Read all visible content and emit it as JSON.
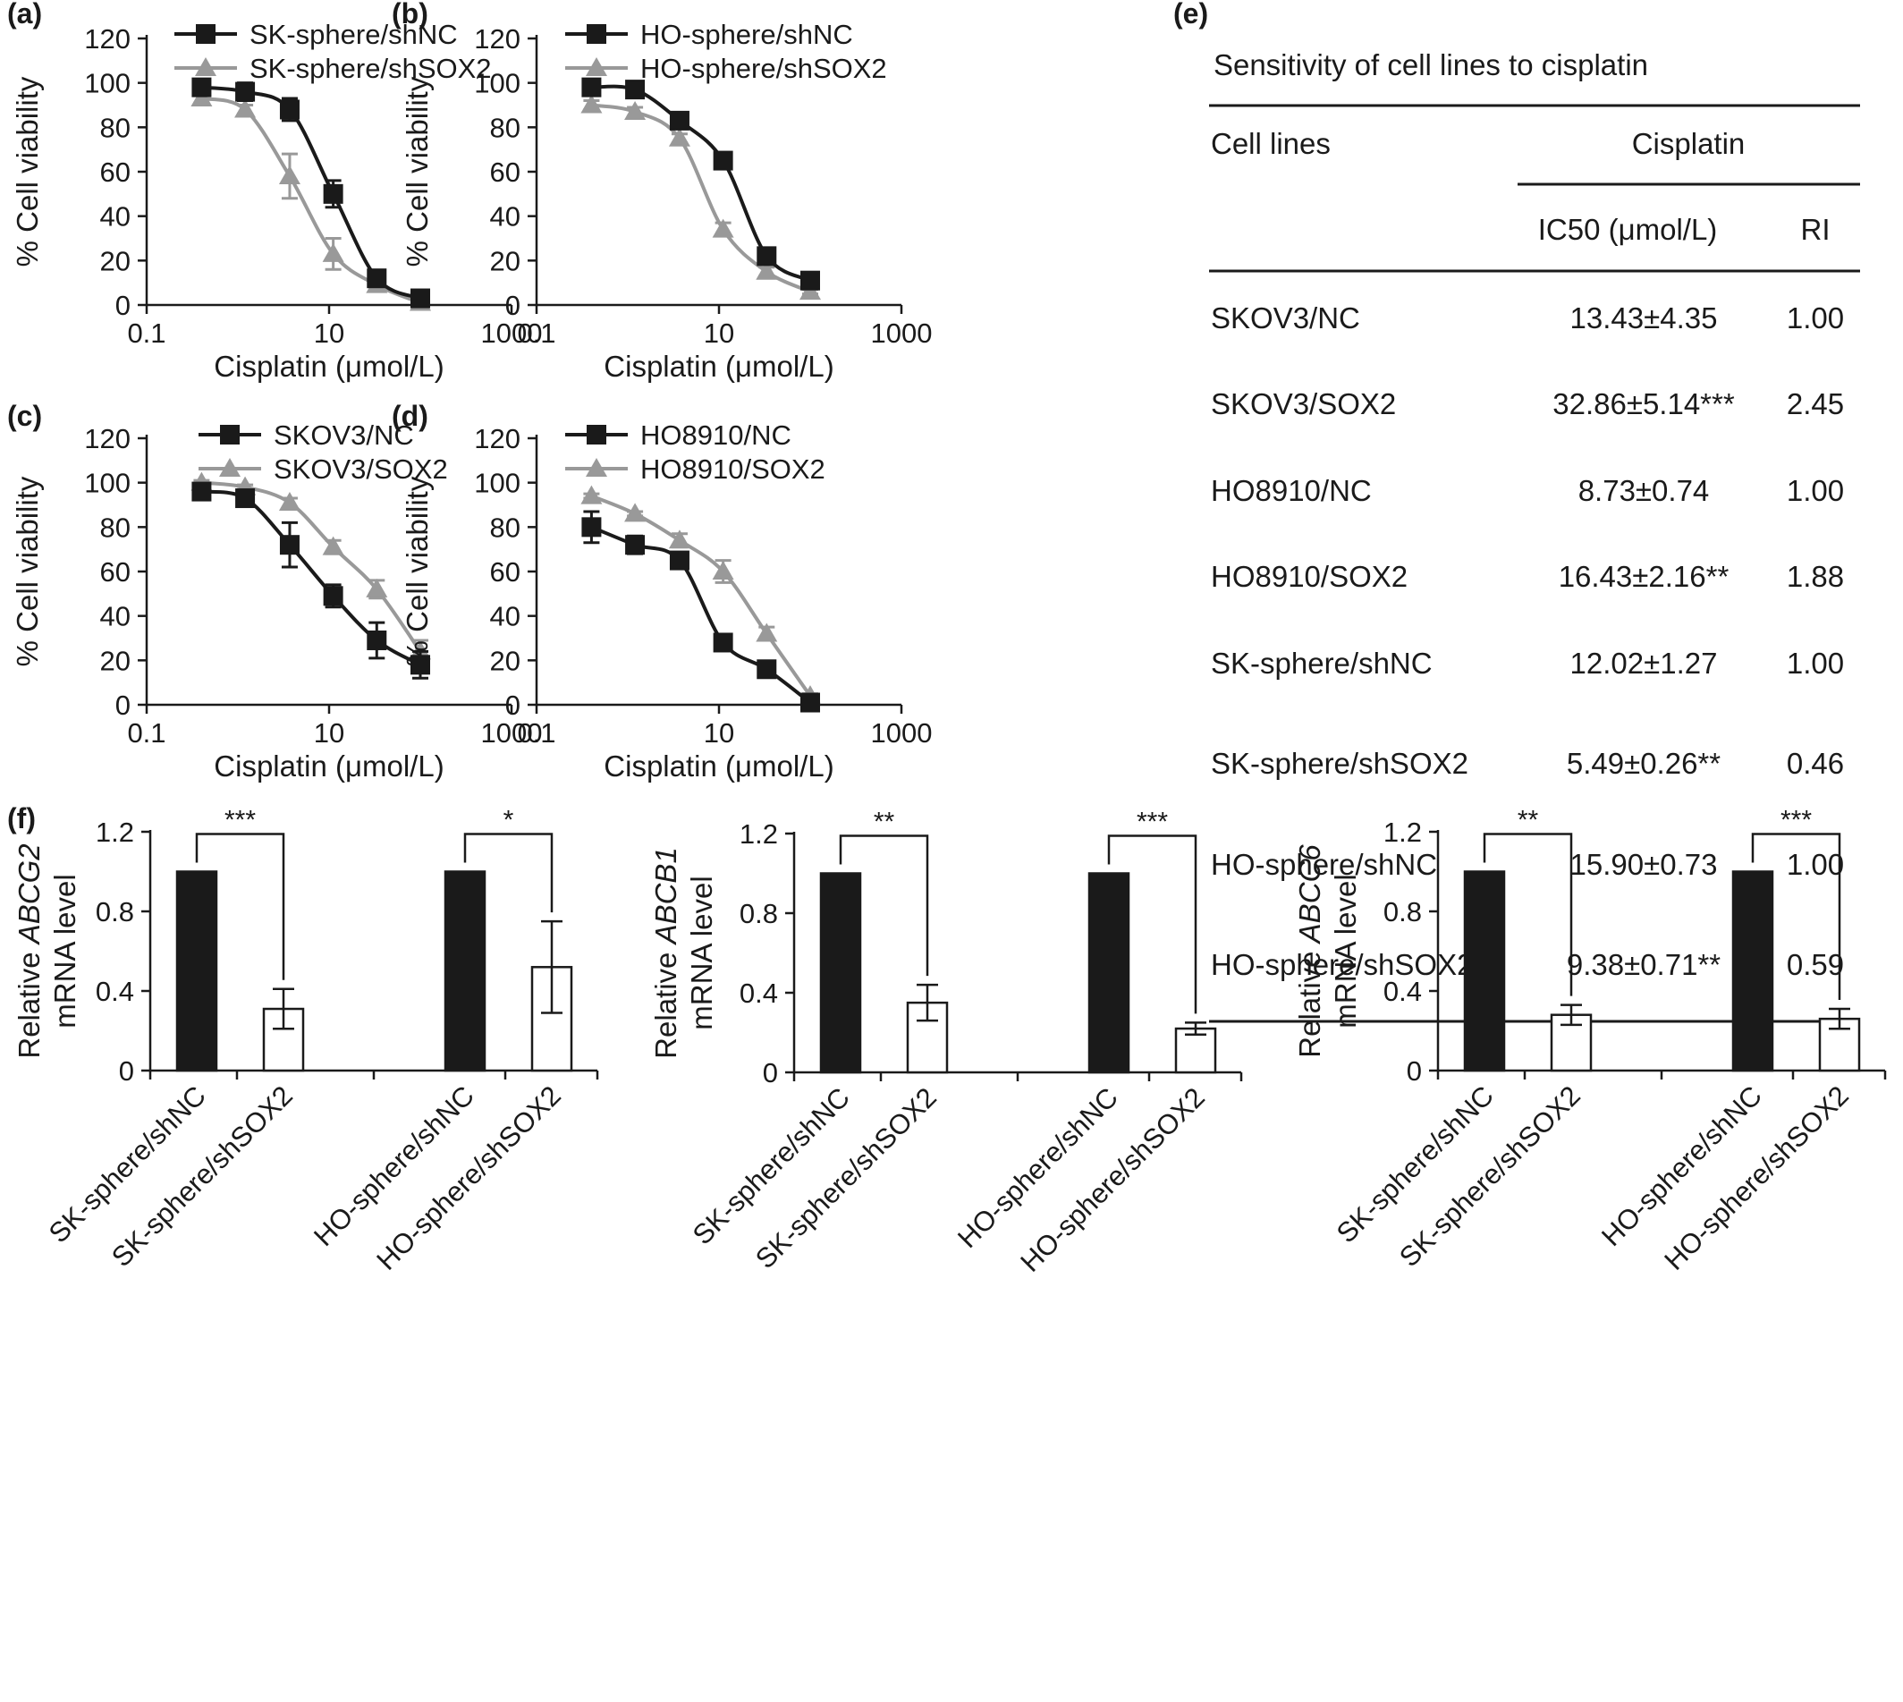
{
  "colors": {
    "dark": "#1a1a1a",
    "gray": "#999999",
    "white": "#ffffff"
  },
  "chart_data": [
    {
      "id": "a",
      "type": "line",
      "panel_label": "(a)",
      "xlabel": "Cisplatin (μmol/L)",
      "ylabel": "% Cell viability",
      "xscale": "log",
      "xlim": [
        0.1,
        1000
      ],
      "ylim": [
        0,
        120
      ],
      "xticks": [
        0.1,
        10,
        1000
      ],
      "xtick_labels": [
        "0.1",
        "10",
        "1000"
      ],
      "yticks": [
        0,
        20,
        40,
        60,
        80,
        100,
        120
      ],
      "ytick_labels": [
        "0",
        "20",
        "40",
        "60",
        "80",
        "100",
        "120"
      ],
      "legend_position": "top-left",
      "x": [
        0.4,
        1.2,
        3.7,
        11.1,
        33.3,
        100
      ],
      "series": [
        {
          "name": "SK-sphere/shNC",
          "color": "#1a1a1a",
          "marker": "square",
          "values": [
            98,
            96,
            88,
            50,
            12,
            3
          ],
          "errors": [
            2,
            4,
            5,
            6,
            2,
            1
          ]
        },
        {
          "name": "SK-sphere/shSOX2",
          "color": "#999999",
          "marker": "triangle",
          "values": [
            93,
            88,
            58,
            23,
            9,
            1
          ],
          "errors": [
            2,
            2,
            10,
            7,
            2,
            1
          ]
        }
      ]
    },
    {
      "id": "b",
      "type": "line",
      "panel_label": "(b)",
      "xlabel": "Cisplatin (μmol/L)",
      "ylabel": "% Cell viability",
      "xscale": "log",
      "xlim": [
        0.1,
        1000
      ],
      "ylim": [
        0,
        120
      ],
      "xticks": [
        0.1,
        10,
        1000
      ],
      "xtick_labels": [
        "0.1",
        "10",
        "1000"
      ],
      "yticks": [
        0,
        20,
        40,
        60,
        80,
        100,
        120
      ],
      "ytick_labels": [
        "0",
        "20",
        "40",
        "60",
        "80",
        "100",
        "120"
      ],
      "legend_position": "top-left",
      "x": [
        0.4,
        1.2,
        3.7,
        11.1,
        33.3,
        100
      ],
      "series": [
        {
          "name": "HO-sphere/shNC",
          "color": "#1a1a1a",
          "marker": "square",
          "values": [
            98,
            97,
            83,
            65,
            22,
            11
          ],
          "errors": [
            1,
            1,
            1,
            2,
            2,
            1
          ]
        },
        {
          "name": "HO-sphere/shSOX2",
          "color": "#999999",
          "marker": "triangle",
          "values": [
            90,
            87,
            75,
            34,
            15,
            6
          ],
          "errors": [
            2,
            2,
            2,
            3,
            2,
            1
          ]
        }
      ]
    },
    {
      "id": "c",
      "type": "line",
      "panel_label": "(c)",
      "xlabel": "Cisplatin (μmol/L)",
      "ylabel": "% Cell viability",
      "xscale": "log",
      "xlim": [
        0.1,
        1000
      ],
      "ylim": [
        0,
        120
      ],
      "xticks": [
        0.1,
        10,
        1000
      ],
      "xtick_labels": [
        "0.1",
        "10",
        "1000"
      ],
      "yticks": [
        0,
        20,
        40,
        60,
        80,
        100,
        120
      ],
      "ytick_labels": [
        "0",
        "20",
        "40",
        "60",
        "80",
        "100",
        "120"
      ],
      "legend_position": "top-center",
      "x": [
        0.4,
        1.2,
        3.7,
        11.1,
        33.3,
        100
      ],
      "series": [
        {
          "name": "SKOV3/NC",
          "color": "#1a1a1a",
          "marker": "square",
          "values": [
            96,
            93,
            72,
            49,
            29,
            18
          ],
          "errors": [
            2,
            2,
            10,
            5,
            8,
            6
          ]
        },
        {
          "name": "SKOV3/SOX2",
          "color": "#999999",
          "marker": "triangle",
          "values": [
            100,
            98,
            91,
            71,
            52,
            24
          ],
          "errors": [
            1,
            1,
            2,
            3,
            4,
            5
          ]
        }
      ]
    },
    {
      "id": "d",
      "type": "line",
      "panel_label": "(d)",
      "xlabel": "Cisplatin (μmol/L)",
      "ylabel": "% Cell viability",
      "xscale": "log",
      "xlim": [
        0.1,
        1000
      ],
      "ylim": [
        0,
        120
      ],
      "xticks": [
        0.1,
        10,
        1000
      ],
      "xtick_labels": [
        "0.1",
        "10",
        "1000"
      ],
      "yticks": [
        0,
        20,
        40,
        60,
        80,
        100,
        120
      ],
      "ytick_labels": [
        "0",
        "20",
        "40",
        "60",
        "80",
        "100",
        "120"
      ],
      "legend_position": "top-center",
      "x": [
        0.4,
        1.2,
        3.7,
        11.1,
        33.3,
        100
      ],
      "series": [
        {
          "name": "HO8910/NC",
          "color": "#1a1a1a",
          "marker": "square",
          "values": [
            80,
            72,
            65,
            28,
            16,
            1
          ],
          "errors": [
            7,
            4,
            1,
            1,
            1,
            1
          ]
        },
        {
          "name": "HO8910/SOX2",
          "color": "#999999",
          "marker": "triangle",
          "values": [
            94,
            86,
            74,
            60,
            32,
            4
          ],
          "errors": [
            1,
            1,
            3,
            5,
            3,
            1
          ]
        }
      ]
    },
    {
      "id": "e",
      "type": "table",
      "panel_label": "(e)",
      "title": "Sensitivity of cell lines to cisplatin",
      "header_rowname": "Cell lines",
      "group_header": "Cisplatin",
      "columns": [
        "IC50 (μmol/L)",
        "RI"
      ],
      "rows": [
        {
          "name": "SKOV3/NC",
          "ic50": "13.43±4.35",
          "ri": "1.00"
        },
        {
          "name": "SKOV3/SOX2",
          "ic50": "32.86±5.14***",
          "ri": "2.45"
        },
        {
          "name": "HO8910/NC",
          "ic50": "8.73±0.74",
          "ri": "1.00"
        },
        {
          "name": "HO8910/SOX2",
          "ic50": "16.43±2.16**",
          "ri": "1.88"
        },
        {
          "name": "SK-sphere/shNC",
          "ic50": "12.02±1.27",
          "ri": "1.00"
        },
        {
          "name": "SK-sphere/shSOX2",
          "ic50": "5.49±0.26**",
          "ri": "0.46"
        },
        {
          "name": "HO-sphere/shNC",
          "ic50": "15.90±0.73",
          "ri": "1.00"
        },
        {
          "name": "HO-sphere/shSOX2",
          "ic50": "9.38±0.71**",
          "ri": "0.59"
        }
      ]
    },
    {
      "id": "f1",
      "type": "bar",
      "panel_label": "(f)",
      "ylabel_prefix": "Relative ",
      "ylabel_gene": "ABCG2",
      "ylabel_line2": "mRNA level",
      "ylim": [
        0,
        1.2
      ],
      "yticks": [
        0,
        0.4,
        0.8,
        1.2
      ],
      "ytick_labels": [
        "0",
        "0.4",
        "0.8",
        "1.2"
      ],
      "categories": [
        "SK-sphere/shNC",
        "SK-sphere/shSOX2",
        "HO-sphere/shNC",
        "HO-sphere/shSOX2"
      ],
      "values": [
        1.0,
        0.31,
        1.0,
        0.52
      ],
      "errors": [
        0,
        0.1,
        0,
        0.23
      ],
      "fills": [
        "black",
        "white",
        "black",
        "white"
      ],
      "significance": [
        {
          "pair": [
            0,
            1
          ],
          "label": "***"
        },
        {
          "pair": [
            2,
            3
          ],
          "label": "*"
        }
      ]
    },
    {
      "id": "f2",
      "type": "bar",
      "panel_label": "",
      "ylabel_prefix": "Relative ",
      "ylabel_gene": "ABCB1",
      "ylabel_line2": "mRNA level",
      "ylim": [
        0,
        1.2
      ],
      "yticks": [
        0,
        0.4,
        0.8,
        1.2
      ],
      "ytick_labels": [
        "0",
        "0.4",
        "0.8",
        "1.2"
      ],
      "categories": [
        "SK-sphere/shNC",
        "SK-sphere/shSOX2",
        "HO-sphere/shNC",
        "HO-sphere/shSOX2"
      ],
      "values": [
        1.0,
        0.35,
        1.0,
        0.22
      ],
      "errors": [
        0,
        0.09,
        0,
        0.03
      ],
      "fills": [
        "black",
        "white",
        "black",
        "white"
      ],
      "significance": [
        {
          "pair": [
            0,
            1
          ],
          "label": "**"
        },
        {
          "pair": [
            2,
            3
          ],
          "label": "***"
        }
      ]
    },
    {
      "id": "f3",
      "type": "bar",
      "panel_label": "",
      "ylabel_prefix": "Relative ",
      "ylabel_gene": "ABCC6",
      "ylabel_line2": "mRNA level",
      "ylim": [
        0,
        1.2
      ],
      "yticks": [
        0,
        0.4,
        0.8,
        1.2
      ],
      "ytick_labels": [
        "0",
        "0.4",
        "0.8",
        "1.2"
      ],
      "categories": [
        "SK-sphere/shNC",
        "SK-sphere/shSOX2",
        "HO-sphere/shNC",
        "HO-sphere/shSOX2"
      ],
      "values": [
        1.0,
        0.28,
        1.0,
        0.26
      ],
      "errors": [
        0,
        0.05,
        0,
        0.05
      ],
      "fills": [
        "black",
        "white",
        "black",
        "white"
      ],
      "significance": [
        {
          "pair": [
            0,
            1
          ],
          "label": "**"
        },
        {
          "pair": [
            2,
            3
          ],
          "label": "***"
        }
      ]
    }
  ]
}
